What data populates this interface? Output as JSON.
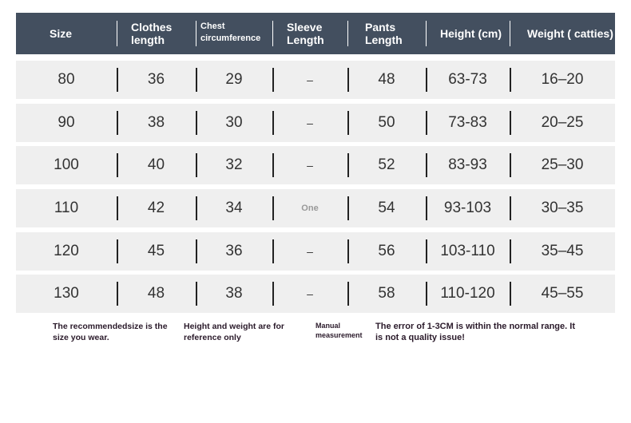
{
  "header": [
    "Size",
    "Clothes length",
    "Chest circumference",
    "Sleeve Length",
    "Pants Length",
    "Height (cm)",
    "Weight ( catties)"
  ],
  "rows": [
    [
      "80",
      "36",
      "29",
      "–",
      "48",
      "63-73",
      "16–20"
    ],
    [
      "90",
      "38",
      "30",
      "–",
      "50",
      "73-83",
      "20–25"
    ],
    [
      "100",
      "40",
      "32",
      "–",
      "52",
      "83-93",
      "25–30"
    ],
    [
      "110",
      "42",
      "34",
      "One",
      "54",
      "93-103",
      "30–35"
    ],
    [
      "120",
      "45",
      "36",
      "–",
      "56",
      "103-110",
      "35–45"
    ],
    [
      "130",
      "48",
      "38",
      "–",
      "58",
      "110-120",
      "45–55"
    ]
  ],
  "notes": [
    "The recommendedsize is the size you wear.",
    "Height and weight are for reference only",
    "Manual measurement",
    "The error of 1-3CM is within the normal range. It is not a quality issue!"
  ],
  "colors": {
    "header_bg": "#434f5f",
    "row_bg": "#efefef"
  }
}
